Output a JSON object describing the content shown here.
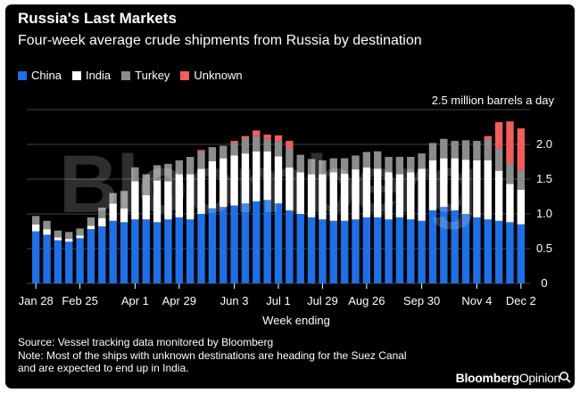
{
  "title": "Russia's Last Markets",
  "subtitle": "Four-week average crude shipments from Russia by destination",
  "legend": [
    {
      "label": "China",
      "color": "#1f6fe5"
    },
    {
      "label": "India",
      "color": "#ffffff"
    },
    {
      "label": "Turkey",
      "color": "#8c8c8c"
    },
    {
      "label": "Unknown",
      "color": "#f25d5d"
    }
  ],
  "watermark": "Bloomberg",
  "source": "Source: Vessel tracking data monitored by Bloomberg",
  "note_line1": "Note: Most of the ships with unknown destinations are heading for the Suez Canal",
  "note_line2": "and are expected to end up in India.",
  "brand_main": "Bloomberg",
  "brand_suffix": "Opinion",
  "chart_data": {
    "type": "bar",
    "stacked": true,
    "title": "Russia's Last Markets",
    "subtitle": "Four-week average crude shipments from Russia by destination",
    "xlabel": "Week ending",
    "ylabel": "",
    "unit_label": "2.5 million barrels a day",
    "ylim": [
      0,
      2.5
    ],
    "yticks": [
      "0",
      "0.5",
      "1.0",
      "1.5",
      "2.0"
    ],
    "ytick_values": [
      0,
      0.5,
      1.0,
      1.5,
      2.0
    ],
    "grid": true,
    "legend_position": "top-left",
    "xtick_labels": [
      {
        "index": 0,
        "label": "Jan 28"
      },
      {
        "index": 4,
        "label": "Feb 25"
      },
      {
        "index": 9,
        "label": "Apr 1"
      },
      {
        "index": 13,
        "label": "Apr 29"
      },
      {
        "index": 18,
        "label": "Jun 3"
      },
      {
        "index": 22,
        "label": "Jul 1"
      },
      {
        "index": 26,
        "label": "Jul 29"
      },
      {
        "index": 30,
        "label": "Aug 26"
      },
      {
        "index": 35,
        "label": "Sep 30"
      },
      {
        "index": 40,
        "label": "Nov 4"
      },
      {
        "index": 44,
        "label": "Dec 2"
      }
    ],
    "series": [
      {
        "name": "China",
        "color": "#1f6fe5",
        "values": [
          0.75,
          0.7,
          0.62,
          0.6,
          0.65,
          0.78,
          0.82,
          0.9,
          0.88,
          0.92,
          0.92,
          0.88,
          0.92,
          0.95,
          0.92,
          1.0,
          1.08,
          1.1,
          1.12,
          1.15,
          1.18,
          1.2,
          1.15,
          1.05,
          1.0,
          0.95,
          0.92,
          0.9,
          0.9,
          0.92,
          0.95,
          0.95,
          0.92,
          0.95,
          0.92,
          0.9,
          1.05,
          1.1,
          1.05,
          1.0,
          0.95,
          0.92,
          0.9,
          0.88,
          0.85
        ]
      },
      {
        "name": "India",
        "color": "#ffffff",
        "values": [
          0.1,
          0.08,
          0.04,
          0.04,
          0.04,
          0.05,
          0.12,
          0.25,
          0.2,
          0.55,
          0.35,
          0.6,
          0.55,
          0.62,
          0.65,
          0.65,
          0.68,
          0.7,
          0.72,
          0.72,
          0.72,
          0.7,
          0.68,
          0.62,
          0.6,
          0.62,
          0.65,
          0.7,
          0.68,
          0.72,
          0.72,
          0.7,
          0.68,
          0.62,
          0.68,
          0.75,
          0.72,
          0.7,
          0.75,
          0.78,
          0.82,
          0.85,
          0.72,
          0.55,
          0.5
        ]
      },
      {
        "name": "Turkey",
        "color": "#8c8c8c",
        "values": [
          0.12,
          0.12,
          0.1,
          0.1,
          0.1,
          0.12,
          0.15,
          0.15,
          0.25,
          0.2,
          0.3,
          0.22,
          0.25,
          0.2,
          0.25,
          0.25,
          0.2,
          0.18,
          0.18,
          0.22,
          0.22,
          0.18,
          0.22,
          0.28,
          0.25,
          0.22,
          0.2,
          0.2,
          0.22,
          0.2,
          0.22,
          0.25,
          0.22,
          0.25,
          0.22,
          0.22,
          0.25,
          0.28,
          0.25,
          0.28,
          0.28,
          0.3,
          0.32,
          0.3,
          0.28
        ]
      },
      {
        "name": "Unknown",
        "color": "#f25d5d",
        "values": [
          0,
          0,
          0,
          0,
          0,
          0,
          0,
          0,
          0,
          0,
          0,
          0,
          0,
          0,
          0,
          0.02,
          0,
          0,
          0.03,
          0.03,
          0.08,
          0.06,
          0.08,
          0.1,
          0,
          0,
          0,
          0,
          0,
          0,
          0,
          0,
          0,
          0,
          0,
          0,
          0,
          0,
          0,
          0,
          0,
          0.05,
          0.38,
          0.6,
          0.6
        ]
      }
    ]
  }
}
